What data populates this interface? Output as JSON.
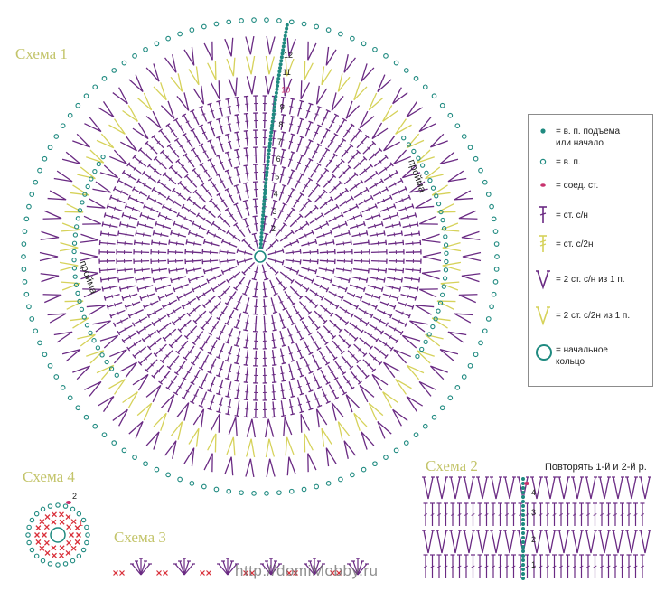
{
  "schemes": {
    "s1": "Схема 1",
    "s2": "Схема 2",
    "s3": "Схема 3",
    "s4": "Схема 4"
  },
  "armhole_label": "пройма",
  "row_numbers": [
    "2",
    "3",
    "4",
    "5",
    "6",
    "7",
    "8",
    "9",
    "10",
    "11",
    "12"
  ],
  "scheme2_row_numbers": [
    "1",
    "2",
    "3",
    "4"
  ],
  "scheme4_row_numbers": [
    "1",
    "2"
  ],
  "repeat_note": "Повторять 1-й и 2-й р.",
  "watermark": "http://domiMobby.ru",
  "legend": [
    {
      "icon": "teal-dot-icon",
      "text": "= в. п. подъема\nили начало"
    },
    {
      "icon": "chain-circle-icon",
      "text": "= в. п."
    },
    {
      "icon": "slip-stitch-icon",
      "text": "= соед. ст."
    },
    {
      "icon": "dc-icon",
      "text": "= ст. с/н"
    },
    {
      "icon": "hdc-icon",
      "text": "= ст. с/2н"
    },
    {
      "icon": "v-dc-icon",
      "text": "= 2 ст. с/н из 1 п."
    },
    {
      "icon": "v-hdc-icon",
      "text": "= 2 ст. с/2н из 1 п."
    },
    {
      "icon": "magic-ring-icon",
      "text": "= начальное\nкольцо"
    }
  ],
  "colors": {
    "purple": "#6a2a83",
    "yellow": "#d6d25a",
    "teal": "#1f8a80",
    "magenta": "#c8336e",
    "red": "#d9303a",
    "label": "#c3c46a"
  }
}
